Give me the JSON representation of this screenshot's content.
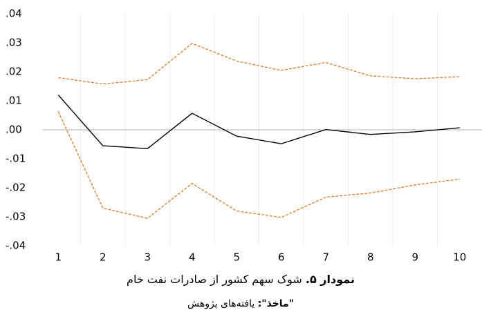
{
  "chart_data": {
    "type": "line",
    "categories": [
      "1",
      "2",
      "3",
      "4",
      "5",
      "6",
      "7",
      "8",
      "9",
      "10"
    ],
    "series": [
      {
        "color": "#000000",
        "line_style": "solid",
        "values": [
          0.012,
          -0.0055,
          -0.0065,
          0.0057,
          -0.0022,
          -0.0048,
          0.0001,
          -0.0016,
          -0.0007,
          0.0007
        ]
      },
      {
        "color": "#e07b2a",
        "line_style": "dashed",
        "values": [
          0.018,
          0.0158,
          0.0173,
          0.0298,
          0.0237,
          0.0205,
          0.0232,
          0.0186,
          0.0176,
          0.0183
        ]
      },
      {
        "color": "#e07b2a",
        "line_style": "dashed",
        "values": [
          0.0063,
          -0.027,
          -0.0305,
          -0.0185,
          -0.028,
          -0.0302,
          -0.0232,
          -0.0218,
          -0.019,
          -0.017
        ]
      }
    ],
    "ylim": [
      -0.04,
      0.04
    ],
    "yticks": [
      {
        "value": -0.04,
        "label": "-.04"
      },
      {
        "value": -0.03,
        "label": "-.03"
      },
      {
        "value": -0.02,
        "label": "-.02"
      },
      {
        "value": -0.01,
        "label": "-.01"
      },
      {
        "value": 0,
        "label": ".00"
      },
      {
        "value": 0.01,
        "label": ".01"
      },
      {
        "value": 0.02,
        "label": ".02"
      },
      {
        "value": 0.03,
        "label": ".03"
      },
      {
        "value": 0.04,
        "label": ".04"
      }
    ],
    "zero_line": true,
    "caption_label": "نمودار ۵.",
    "caption_text": "شوک سهم کشور از صادرات نفت خام",
    "source_label": "\"ماخذ\":",
    "source_text": "یافته‌های پژوهش"
  }
}
